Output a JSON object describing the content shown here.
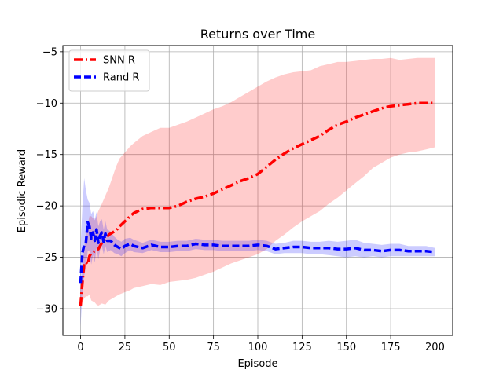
{
  "chart_data": {
    "type": "line",
    "title": "Returns over Time",
    "xlabel": "Episode",
    "ylabel": "Episodic Reward",
    "xlim": [
      -10,
      210
    ],
    "ylim": [
      -32.6,
      -4.4
    ],
    "xticks": [
      0,
      25,
      50,
      75,
      100,
      125,
      150,
      175,
      200
    ],
    "yticks": [
      -30,
      -25,
      -20,
      -15,
      -10,
      -5
    ],
    "grid": true,
    "legend_position": "top-left",
    "series": [
      {
        "name": "SNN R",
        "color": "#ff0000",
        "band_color": "#ff0000",
        "line_style": "dashdot",
        "x": [
          0,
          1,
          2,
          3,
          4,
          5,
          6,
          7,
          8,
          9,
          10,
          12,
          14,
          16,
          18,
          20,
          22,
          25,
          28,
          30,
          35,
          40,
          45,
          50,
          55,
          60,
          65,
          70,
          75,
          80,
          85,
          90,
          95,
          100,
          105,
          110,
          115,
          120,
          125,
          130,
          135,
          140,
          145,
          150,
          155,
          160,
          165,
          170,
          175,
          180,
          185,
          190,
          195,
          200
        ],
        "y": [
          -29.7,
          -27.5,
          -25.6,
          -25.5,
          -25.7,
          -24.9,
          -24.6,
          -24.5,
          -24.4,
          -24.3,
          -24.2,
          -23.6,
          -23.2,
          -22.8,
          -22.6,
          -22.4,
          -22.0,
          -21.5,
          -21.0,
          -20.7,
          -20.3,
          -20.2,
          -20.2,
          -20.2,
          -20.0,
          -19.6,
          -19.3,
          -19.1,
          -18.8,
          -18.4,
          -18.0,
          -17.6,
          -17.3,
          -16.9,
          -16.2,
          -15.5,
          -14.9,
          -14.4,
          -14.0,
          -13.6,
          -13.2,
          -12.6,
          -12.1,
          -11.8,
          -11.4,
          -11.1,
          -10.8,
          -10.5,
          -10.3,
          -10.2,
          -10.1,
          -10.0,
          -10.0,
          -10.0
        ],
        "lower": [
          -29.9,
          -29.4,
          -29.0,
          -28.8,
          -28.8,
          -28.6,
          -29.2,
          -29.3,
          -29.4,
          -29.6,
          -29.7,
          -29.5,
          -29.6,
          -29.2,
          -29.0,
          -28.8,
          -28.6,
          -28.4,
          -28.2,
          -28.0,
          -27.8,
          -27.6,
          -27.7,
          -27.4,
          -27.3,
          -27.2,
          -27.0,
          -26.7,
          -26.4,
          -26.0,
          -25.6,
          -25.3,
          -25.0,
          -24.7,
          -24.2,
          -23.4,
          -22.8,
          -22.1,
          -21.5,
          -21.0,
          -20.5,
          -19.8,
          -19.2,
          -18.5,
          -17.8,
          -17.1,
          -16.3,
          -15.8,
          -15.3,
          -15.0,
          -14.8,
          -14.7,
          -14.5,
          -14.3
        ],
        "upper": [
          -28.7,
          -26.2,
          -24.0,
          -23.0,
          -21.8,
          -21.0,
          -21.0,
          -21.2,
          -21.4,
          -21.0,
          -20.5,
          -19.8,
          -19.0,
          -18.2,
          -17.2,
          -16.2,
          -15.4,
          -14.8,
          -14.2,
          -13.9,
          -13.2,
          -12.8,
          -12.4,
          -12.4,
          -12.1,
          -11.8,
          -11.4,
          -11.0,
          -10.6,
          -10.3,
          -9.9,
          -9.4,
          -8.9,
          -8.4,
          -7.9,
          -7.5,
          -7.2,
          -7.0,
          -6.9,
          -6.8,
          -6.4,
          -6.2,
          -6.0,
          -6.0,
          -5.9,
          -5.8,
          -5.7,
          -5.7,
          -5.6,
          -5.8,
          -5.7,
          -5.6,
          -5.6,
          -5.6
        ]
      },
      {
        "name": "Rand R",
        "color": "#0000ff",
        "band_color": "#0000ff",
        "line_style": "dashed",
        "x": [
          0,
          1,
          2,
          3,
          4,
          5,
          6,
          7,
          8,
          9,
          10,
          11,
          12,
          13,
          14,
          15,
          17,
          19,
          21,
          23,
          25,
          28,
          30,
          35,
          40,
          45,
          50,
          55,
          60,
          65,
          70,
          75,
          80,
          85,
          90,
          95,
          100,
          105,
          110,
          115,
          120,
          125,
          130,
          135,
          140,
          145,
          150,
          155,
          160,
          165,
          170,
          175,
          180,
          185,
          190,
          195,
          200
        ],
        "y": [
          -27.5,
          -24.6,
          -23.8,
          -23.6,
          -21.6,
          -22.0,
          -23.2,
          -22.6,
          -23.4,
          -22.3,
          -23.6,
          -22.9,
          -22.6,
          -23.5,
          -22.7,
          -23.4,
          -23.4,
          -23.8,
          -24.0,
          -24.2,
          -23.9,
          -23.7,
          -23.9,
          -24.1,
          -23.8,
          -24.0,
          -24.0,
          -23.9,
          -23.9,
          -23.7,
          -23.8,
          -23.8,
          -23.9,
          -23.9,
          -23.9,
          -23.9,
          -23.8,
          -23.9,
          -24.2,
          -24.1,
          -24.0,
          -24.0,
          -24.1,
          -24.1,
          -24.1,
          -24.2,
          -24.2,
          -24.1,
          -24.3,
          -24.3,
          -24.4,
          -24.3,
          -24.3,
          -24.4,
          -24.4,
          -24.4,
          -24.5
        ],
        "lower": [
          -31.7,
          -28.6,
          -26.8,
          -26.0,
          -24.4,
          -24.4,
          -25.7,
          -24.8,
          -25.5,
          -24.1,
          -25.2,
          -24.3,
          -23.9,
          -24.7,
          -23.9,
          -24.5,
          -24.3,
          -24.6,
          -24.7,
          -24.9,
          -24.6,
          -24.3,
          -24.5,
          -24.6,
          -24.3,
          -24.5,
          -24.5,
          -24.4,
          -24.4,
          -24.2,
          -24.3,
          -24.3,
          -24.4,
          -24.4,
          -24.4,
          -24.4,
          -24.3,
          -24.4,
          -24.7,
          -24.6,
          -24.6,
          -24.6,
          -24.7,
          -24.7,
          -24.8,
          -24.9,
          -25.0,
          -24.9,
          -25.0,
          -24.9,
          -25.0,
          -24.9,
          -24.9,
          -24.9,
          -24.9,
          -24.9,
          -24.9
        ],
        "upper": [
          -23.9,
          -20.2,
          -17.3,
          -18.5,
          -19.4,
          -19.7,
          -20.8,
          -20.5,
          -21.3,
          -20.6,
          -22.0,
          -21.5,
          -21.3,
          -22.3,
          -21.5,
          -22.3,
          -22.5,
          -23.0,
          -23.3,
          -23.5,
          -23.2,
          -23.1,
          -23.3,
          -23.6,
          -23.3,
          -23.5,
          -23.5,
          -23.4,
          -23.4,
          -23.2,
          -23.3,
          -23.3,
          -23.4,
          -23.4,
          -23.4,
          -23.4,
          -23.3,
          -23.4,
          -23.7,
          -23.6,
          -23.4,
          -23.4,
          -23.5,
          -23.5,
          -23.4,
          -23.5,
          -23.4,
          -23.3,
          -23.6,
          -23.7,
          -23.8,
          -23.7,
          -23.7,
          -23.9,
          -23.9,
          -23.9,
          -24.1
        ]
      }
    ]
  }
}
